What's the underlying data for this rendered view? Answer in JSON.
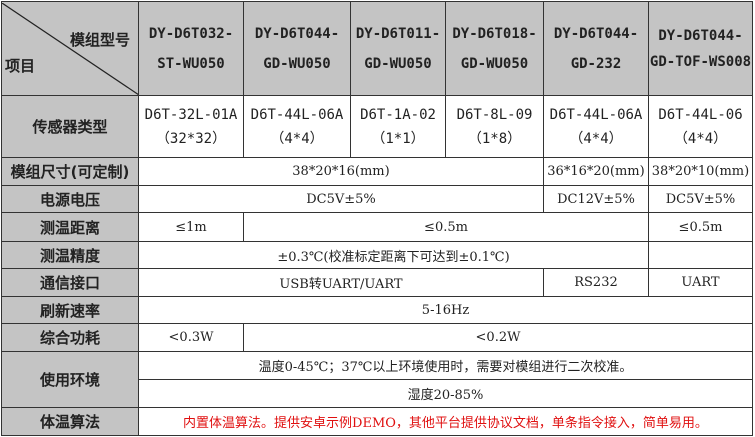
{
  "header": {
    "corner_top": "模组型号",
    "corner_bottom": "项目",
    "models": [
      "DY-D6T032-ST-WU050",
      "DY-D6T044-GD-WU050",
      "DY-D6T011-GD-WU050",
      "DY-D6T018-GD-WU050",
      "DY-D6T044-GD-232",
      "DY-D6T044-GD-TOF-WS008"
    ]
  },
  "rows": {
    "sensor": {
      "label": "传感器类型",
      "values": [
        [
          "D6T-32L-01A",
          "（32*32）"
        ],
        [
          "D6T-44L-06A",
          "（4*4）"
        ],
        [
          "D6T-1A-02",
          "（1*1）"
        ],
        [
          "D6T-8L-09",
          "（1*8）"
        ],
        [
          "D6T-44L-06A",
          "（4*4）"
        ],
        [
          "D6T-44L-06",
          "（4*4）"
        ]
      ]
    },
    "size": {
      "label": "模组尺寸(可定制)",
      "values": [
        "38*20*16(mm)",
        "36*16*20(mm)",
        "38*20*10(mm)"
      ]
    },
    "voltage": {
      "label": "电源电压",
      "values": [
        "DC5V±5%",
        "DC12V±5%",
        "DC5V±5%"
      ]
    },
    "distance": {
      "label": "测温距离",
      "values": [
        "≤1m",
        "≤0.5m",
        "≤0.5m"
      ]
    },
    "accuracy": {
      "label": "测温精度",
      "values": [
        "±0.3℃(校准标定距离下可达到±0.1℃)",
        ""
      ]
    },
    "interface": {
      "label": "通信接口",
      "values": [
        "USB转UART/UART",
        "RS232",
        "UART"
      ]
    },
    "refresh": {
      "label": "刷新速率",
      "values": [
        "5-16Hz"
      ]
    },
    "consumption": {
      "label": "综合功耗",
      "values": [
        "<0.3W",
        "<0.2W"
      ]
    },
    "environment": {
      "label": "使用环境",
      "values": [
        "温度0-45℃；37℃以上环境使用时，需要对模组进行二次校准。",
        "湿度20-85%"
      ]
    },
    "algorithm": {
      "label": "体温算法",
      "values": [
        "内置体温算法。提供安卓示例DEMO，其他平台提供协议文档，单条指令接入，简单易用。"
      ],
      "color": "#e01010"
    }
  }
}
